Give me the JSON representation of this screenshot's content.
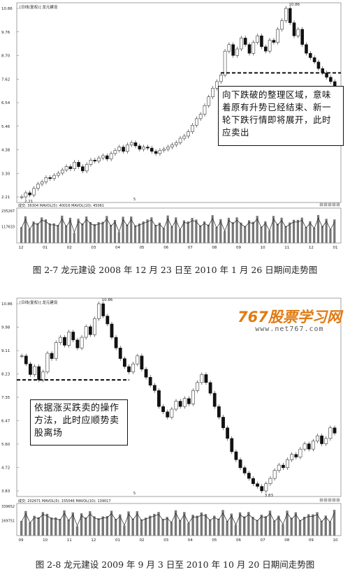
{
  "chart1": {
    "header": "[日线(复权)] 龙元建设",
    "yticks": [
      "10.86",
      "9.76",
      "8.70",
      "7.62",
      "6.54",
      "5.46",
      "4.38",
      "3.30",
      "2.21"
    ],
    "high_label": "10.86",
    "low_label": "2.21",
    "mid_label": "5",
    "xticks": [
      "12",
      "01",
      "02",
      "03",
      "04",
      "05",
      "06",
      "07",
      "08",
      "09",
      "10",
      "11",
      "12",
      "01"
    ],
    "vol_header": "成交: 36304  MAVOL(5): 40016  MAVOL(10): 45061",
    "vol_yticks": [
      "235267",
      "117633"
    ],
    "callout": "向下跌破的整理区域，意味着原有升势已经结束、新一轮下跌行情即将展开，此时应卖出",
    "caption": "图 2-7   龙元建设 2008 年 12 月 23 日至 2010 年 1 月 26 日期间走势图",
    "close_series": [
      2.21,
      2.4,
      2.3,
      2.6,
      2.8,
      2.9,
      3.1,
      3.05,
      3.2,
      3.3,
      3.45,
      3.6,
      3.5,
      3.8,
      3.6,
      3.4,
      3.7,
      3.9,
      3.85,
      4.0,
      4.1,
      3.95,
      4.2,
      4.35,
      4.5,
      4.3,
      4.6,
      4.7,
      4.55,
      4.4,
      4.5,
      4.45,
      4.3,
      4.2,
      4.35,
      4.4,
      4.5,
      4.6,
      4.7,
      4.9,
      5.0,
      5.2,
      5.5,
      5.8,
      6.0,
      6.4,
      6.8,
      7.2,
      7.5,
      7.8,
      8.9,
      9.2,
      8.7,
      9.0,
      9.5,
      9.2,
      8.8,
      9.3,
      9.6,
      9.1,
      8.9,
      9.4,
      9.3,
      9.9,
      10.3,
      10.86,
      10.2,
      9.6,
      9.9,
      9.2,
      8.8,
      8.6,
      8.4,
      8.1,
      7.9,
      7.7,
      7.5,
      7.3
    ],
    "support_level": 7.9
  },
  "chart2": {
    "header": "[日线(复权)] 龙元建设",
    "yticks": [
      "10.86",
      "9.98",
      "9.11",
      "8.23",
      "7.35",
      "6.47",
      "5.60",
      "4.72",
      "3.83"
    ],
    "high_label": "10.86",
    "low_label": "3.83",
    "mid_label": "5",
    "xticks": [
      "09",
      "10",
      "11",
      "12",
      "01",
      "02",
      "03",
      "04",
      "05",
      "06",
      "07",
      "08",
      "09",
      "10"
    ],
    "vol_header": "成交: 202671  MAVOL(5): 155046  MAVOL(10): 139017",
    "vol_yticks": [
      "339652",
      "169751"
    ],
    "callout": "依据涨买跌卖的操作方法，此时应顺势卖股离场",
    "caption": "图 2-8   龙元建设 2009 年 9 月 3 日至 2010 年 10 月 20 日期间走势图",
    "close_series": [
      8.9,
      8.6,
      8.2,
      8.5,
      8.0,
      8.3,
      9.0,
      8.8,
      9.4,
      9.6,
      9.3,
      9.8,
      9.5,
      9.2,
      9.6,
      10.0,
      9.7,
      10.3,
      10.86,
      10.4,
      10.1,
      9.6,
      9.2,
      8.8,
      8.5,
      8.3,
      8.6,
      8.9,
      8.4,
      8.1,
      7.8,
      7.6,
      7.0,
      6.8,
      6.6,
      6.9,
      7.2,
      7.0,
      7.3,
      7.1,
      7.6,
      7.9,
      8.2,
      7.9,
      7.5,
      7.0,
      6.6,
      6.2,
      5.8,
      5.3,
      5.0,
      4.7,
      4.5,
      4.3,
      4.1,
      4.0,
      3.83,
      4.1,
      4.3,
      4.6,
      4.8,
      4.7,
      5.0,
      5.2,
      5.1,
      5.4,
      5.6,
      5.4,
      5.7,
      5.9,
      5.6,
      5.8,
      6.2,
      6.0
    ],
    "support_level": 8.0
  },
  "watermark": {
    "logo": "767股票学习网",
    "url": "www.net767.com"
  }
}
